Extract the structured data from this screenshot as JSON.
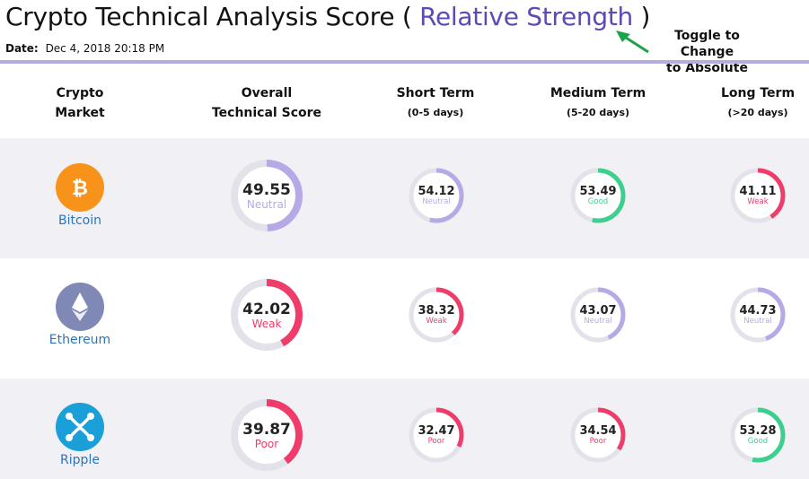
{
  "header": {
    "title_prefix": "Crypto Technical Analysis Score ( ",
    "toggle_label": "Relative Strength",
    "title_suffix": " )",
    "date_label": "Date:",
    "date_value": "Dec 4, 2018 20:18 PM",
    "toggle_note_line1": "Toggle to Change",
    "toggle_note_line2": "to Absolute"
  },
  "columns": {
    "crypto_line1": "Crypto",
    "crypto_line2": "Market",
    "overall_line1": "Overall",
    "overall_line2": "Technical Score",
    "short_line1": "Short Term",
    "short_line2": "(0-5 days)",
    "medium_line1": "Medium Term",
    "medium_line2": "(5-20 days)",
    "long_line1": "Long Term",
    "long_line2": "(>20 days)"
  },
  "colors": {
    "neutral": "#b6a9e6",
    "good": "#3ccf8e",
    "weak": "#ef3c6a",
    "poor": "#ef3c6a",
    "track": "#e2e2ea",
    "bitcoin": "#f7931a",
    "ethereum": "#8088b5",
    "ripple": "#1b9fd8"
  },
  "coins": [
    {
      "name": "Bitcoin",
      "icon": "bitcoin-icon",
      "overall": {
        "value": "49.55",
        "label": "Neutral"
      },
      "short": {
        "value": "54.12",
        "label": "Neutral"
      },
      "medium": {
        "value": "53.49",
        "label": "Good"
      },
      "long": {
        "value": "41.11",
        "label": "Weak"
      }
    },
    {
      "name": "Ethereum",
      "icon": "ethereum-icon",
      "overall": {
        "value": "42.02",
        "label": "Weak"
      },
      "short": {
        "value": "38.32",
        "label": "Weak"
      },
      "medium": {
        "value": "43.07",
        "label": "Neutral"
      },
      "long": {
        "value": "44.73",
        "label": "Neutral"
      }
    },
    {
      "name": "Ripple",
      "icon": "ripple-icon",
      "overall": {
        "value": "39.87",
        "label": "Poor"
      },
      "short": {
        "value": "32.47",
        "label": "Poor"
      },
      "medium": {
        "value": "34.54",
        "label": "Poor"
      },
      "long": {
        "value": "53.28",
        "label": "Good"
      }
    }
  ]
}
